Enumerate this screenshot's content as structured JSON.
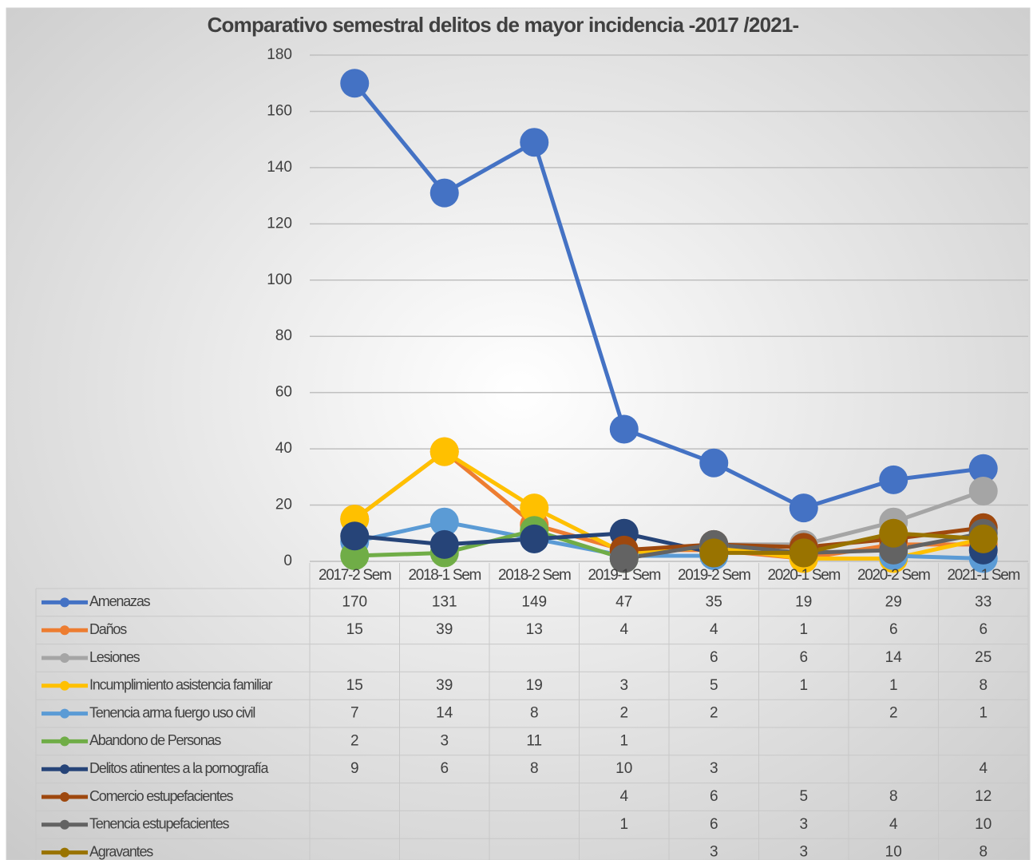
{
  "chart_data": {
    "type": "line",
    "title": "Comparativo semestral delitos de mayor incidencia -2017 /2021-",
    "categories": [
      "2017-2 Sem",
      "2018-1 Sem",
      "2018-2 Sem",
      "2019-1 Sem",
      "2019-2 Sem",
      "2020-1 Sem",
      "2020-2 Sem",
      "2021-1 Sem"
    ],
    "series": [
      {
        "name": "Amenazas",
        "color": "#4472c4",
        "values": [
          170,
          131,
          149,
          47,
          35,
          19,
          29,
          33
        ]
      },
      {
        "name": "Daños",
        "color": "#ed7d31",
        "values": [
          15,
          39,
          13,
          4,
          4,
          1,
          6,
          6
        ]
      },
      {
        "name": "Lesiones",
        "color": "#a5a5a5",
        "values": [
          null,
          null,
          null,
          null,
          6,
          6,
          14,
          25
        ]
      },
      {
        "name": "Incumplimiento asistencia familiar",
        "color": "#ffc000",
        "values": [
          15,
          39,
          19,
          3,
          5,
          1,
          1,
          8
        ]
      },
      {
        "name": "Tenencia arma fuergo uso civil",
        "color": "#5b9bd5",
        "values": [
          7,
          14,
          8,
          2,
          2,
          null,
          2,
          1
        ]
      },
      {
        "name": "Abandono de Personas",
        "color": "#70ad47",
        "values": [
          2,
          3,
          11,
          1,
          null,
          null,
          null,
          null
        ]
      },
      {
        "name": "Delitos atinentes a la pornografía",
        "color": "#264478",
        "values": [
          9,
          6,
          8,
          10,
          3,
          null,
          null,
          4
        ]
      },
      {
        "name": "Comercio estupefacientes",
        "color": "#9e480e",
        "values": [
          null,
          null,
          null,
          4,
          6,
          5,
          8,
          12
        ]
      },
      {
        "name": "Tenencia estupefacientes",
        "color": "#636363",
        "values": [
          null,
          null,
          null,
          1,
          6,
          3,
          4,
          10
        ]
      },
      {
        "name": "Agravantes",
        "color": "#997300",
        "values": [
          null,
          null,
          null,
          null,
          3,
          3,
          10,
          8
        ]
      }
    ],
    "ylim": [
      0,
      180
    ],
    "yticks": [
      0,
      20,
      40,
      60,
      80,
      100,
      120,
      140,
      160,
      180
    ],
    "grid": true
  }
}
